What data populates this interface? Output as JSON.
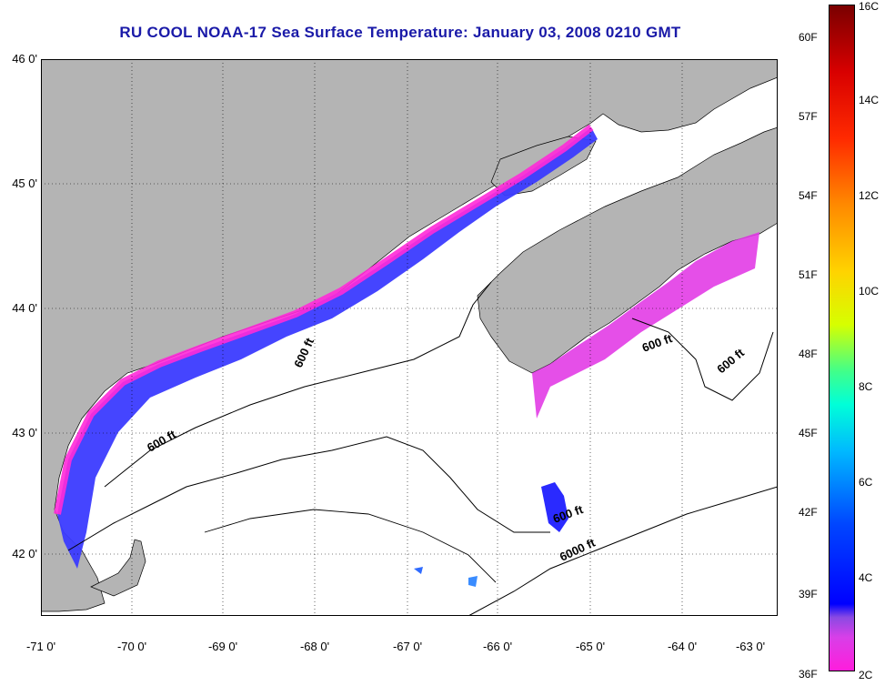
{
  "title": "RU COOL  NOAA-17  Sea Surface Temperature:  January 03, 2008 0210 GMT",
  "map": {
    "lat_labels": [
      "46 0'",
      "45 0'",
      "44 0'",
      "43 0'",
      "42 0'"
    ],
    "lon_labels": [
      "-71 0'",
      "-70 0'",
      "-69 0'",
      "-68 0'",
      "-67 0'",
      "-66 0'",
      "-65 0'",
      "-64 0'",
      "-63 0'"
    ],
    "contour_labels": [
      "600 ft",
      "600 ft",
      "600 ft",
      "600 ft",
      "600 ft",
      "6000 ft"
    ],
    "colors": {
      "land": "#b4b4b4",
      "water": "#ffffff",
      "title": "#1a1aa8"
    }
  },
  "colorbar": {
    "fahrenheit": [
      "60F",
      "57F",
      "54F",
      "51F",
      "48F",
      "45F",
      "42F",
      "39F",
      "36F"
    ],
    "celsius": [
      "16C",
      "14C",
      "12C",
      "10C",
      "8C",
      "6C",
      "4C",
      "2C"
    ]
  }
}
